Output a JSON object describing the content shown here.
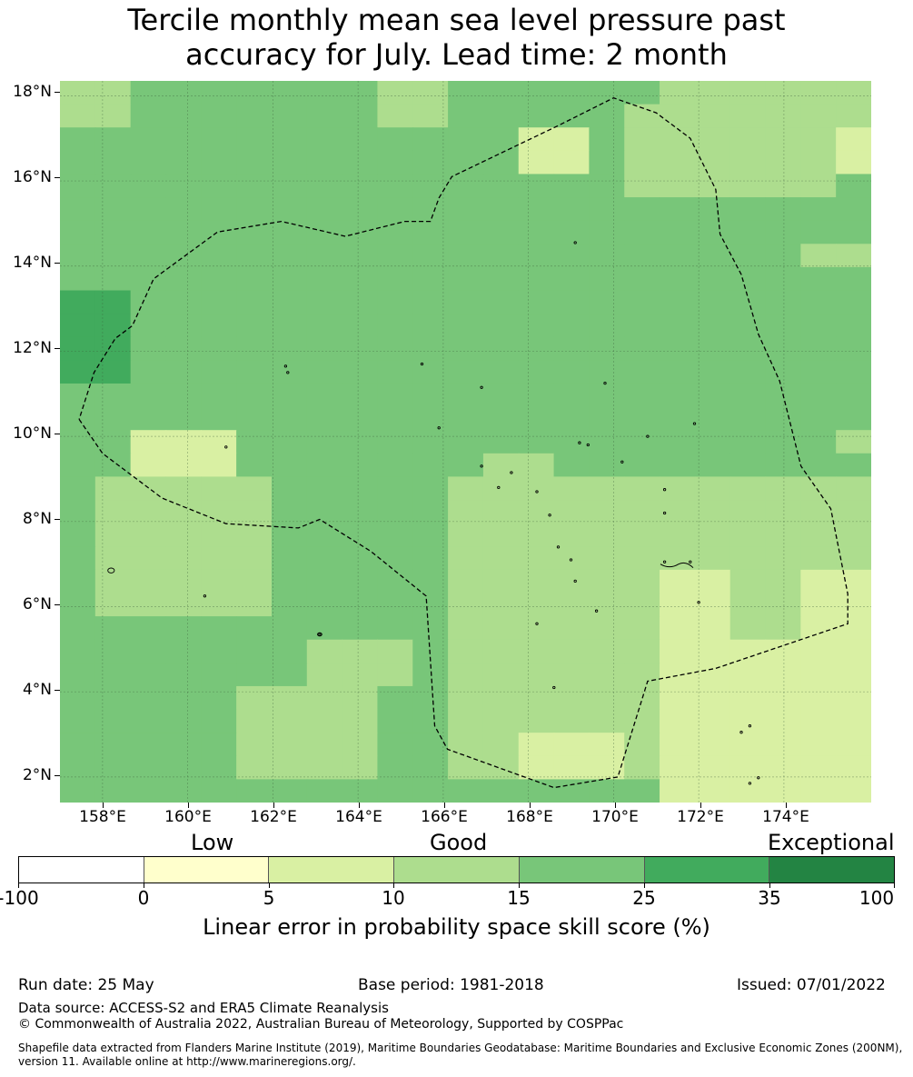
{
  "title": {
    "line1": "Tercile monthly mean sea level pressure past",
    "line2": "accuracy for July. Lead time: 2 month"
  },
  "map": {
    "lat_labels": [
      "18°N",
      "16°N",
      "14°N",
      "12°N",
      "10°N",
      "8°N",
      "6°N",
      "4°N",
      "2°N"
    ],
    "lon_labels": [
      "158°E",
      "160°E",
      "162°E",
      "164°E",
      "166°E",
      "168°E",
      "170°E",
      "172°E",
      "174°E"
    ],
    "lat_range": [
      1.4,
      18.35
    ],
    "lon_range": [
      157.0,
      176.05
    ],
    "colors": {
      "c0": "#ffffcc",
      "c1": "#d9f0a3",
      "c2": "#addd8e",
      "c3": "#78c679",
      "c4": "#41ab5d",
      "c5": "#238443"
    },
    "boundary_style": "dashed black line"
  },
  "colorbar": {
    "categories": {
      "low": "Low",
      "good": "Good",
      "exceptional": "Exceptional"
    },
    "ticks": [
      "-100",
      "0",
      "5",
      "10",
      "15",
      "25",
      "35",
      "100"
    ],
    "colors": [
      "#ffffff",
      "#ffffcc",
      "#d9f0a3",
      "#addd8e",
      "#78c679",
      "#41ab5d",
      "#238443"
    ],
    "label": "Linear error in probability space skill score (%)"
  },
  "footer": {
    "run_date": "Run date: 25 May",
    "base_period": "Base period: 1981-2018",
    "issued": "Issued: 07/01/2022",
    "data_source": "Data source: ACCESS-S2 and ERA5 Climate Reanalysis",
    "copyright": "© Commonwealth of Australia 2022, Australian Bureau of Meteorology, Supported by COSPPac",
    "shapefile_line1": "Shapefile data extracted from Flanders Marine Institute (2019), Maritime Boundaries Geodatabase: Maritime Boundaries and Exclusive Economic Zones (200NM),",
    "shapefile_line2": "version 11. Available online at http://www.marineregions.org/."
  }
}
